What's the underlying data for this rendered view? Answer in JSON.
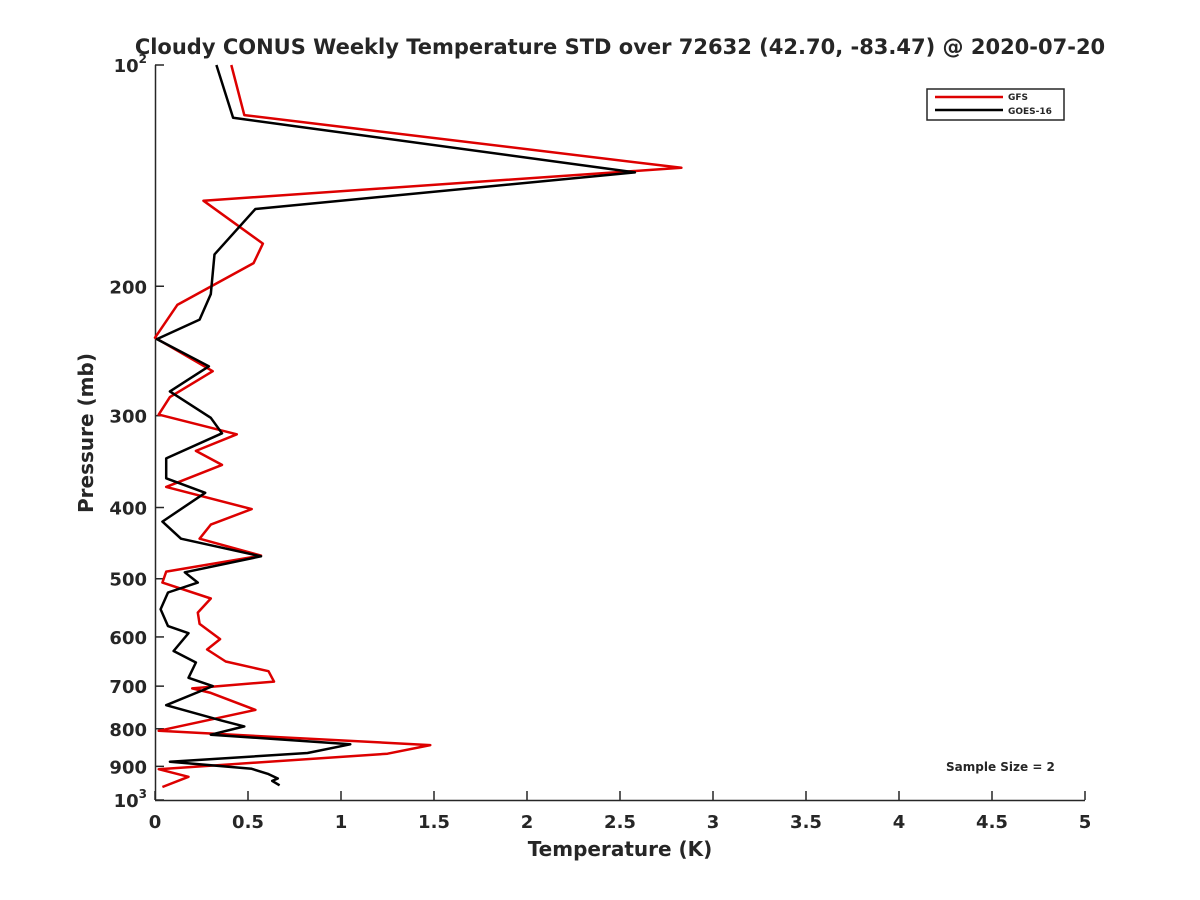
{
  "chart_data": {
    "type": "line",
    "title": "Cloudy CONUS Weekly Temperature STD over 72632 (42.70, -83.47) @ 2020-07-20",
    "xlabel": "Temperature (K)",
    "ylabel": "Pressure (mb)",
    "xlim": [
      0,
      5
    ],
    "ylim": [
      100,
      1000
    ],
    "y_scale": "log",
    "y_reversed": true,
    "grid": false,
    "legend_position": "top-right",
    "annotation": "Sample Size = 2",
    "x_ticks": [
      "0",
      "0.5",
      "1",
      "1.5",
      "2",
      "2.5",
      "3",
      "3.5",
      "4",
      "4.5",
      "5"
    ],
    "y_ticks": [
      {
        "value": 100,
        "base": "10",
        "exp": "2"
      },
      {
        "value": 200,
        "label": "200"
      },
      {
        "value": 300,
        "label": "300"
      },
      {
        "value": 400,
        "label": "400"
      },
      {
        "value": 500,
        "label": "500"
      },
      {
        "value": 600,
        "label": "600"
      },
      {
        "value": 700,
        "label": "700"
      },
      {
        "value": 800,
        "label": "800"
      },
      {
        "value": 900,
        "label": "900"
      },
      {
        "value": 1000,
        "base": "10",
        "exp": "3"
      }
    ],
    "series": [
      {
        "name": "GFS",
        "color": "#dd0000",
        "points": [
          [
            0.41,
            100
          ],
          [
            0.48,
            117
          ],
          [
            2.83,
            138
          ],
          [
            0.26,
            153
          ],
          [
            0.58,
            175
          ],
          [
            0.53,
            186
          ],
          [
            0.12,
            212
          ],
          [
            0.0,
            235
          ],
          [
            0.31,
            261
          ],
          [
            0.08,
            283
          ],
          [
            0.02,
            299
          ],
          [
            0.44,
            318
          ],
          [
            0.22,
            335
          ],
          [
            0.36,
            350
          ],
          [
            0.06,
            375
          ],
          [
            0.52,
            402
          ],
          [
            0.3,
            422
          ],
          [
            0.24,
            441
          ],
          [
            0.57,
            465
          ],
          [
            0.06,
            489
          ],
          [
            0.04,
            506
          ],
          [
            0.3,
            532
          ],
          [
            0.23,
            556
          ],
          [
            0.24,
            576
          ],
          [
            0.35,
            604
          ],
          [
            0.28,
            624
          ],
          [
            0.38,
            648
          ],
          [
            0.61,
            668
          ],
          [
            0.64,
            690
          ],
          [
            0.2,
            705
          ],
          [
            0.3,
            715
          ],
          [
            0.54,
            754
          ],
          [
            0.02,
            805
          ],
          [
            1.48,
            842
          ],
          [
            1.25,
            865
          ],
          [
            0.02,
            908
          ],
          [
            0.18,
            930
          ],
          [
            0.04,
            960
          ]
        ]
      },
      {
        "name": "GOES-16",
        "color": "#000000",
        "points": [
          [
            0.33,
            100
          ],
          [
            0.42,
            118
          ],
          [
            2.58,
            140
          ],
          [
            0.54,
            157
          ],
          [
            0.32,
            181
          ],
          [
            0.3,
            205
          ],
          [
            0.24,
            222
          ],
          [
            0.01,
            236
          ],
          [
            0.29,
            257
          ],
          [
            0.08,
            278
          ],
          [
            0.3,
            302
          ],
          [
            0.36,
            317
          ],
          [
            0.06,
            343
          ],
          [
            0.06,
            365
          ],
          [
            0.27,
            382
          ],
          [
            0.04,
            418
          ],
          [
            0.14,
            441
          ],
          [
            0.57,
            466
          ],
          [
            0.16,
            490
          ],
          [
            0.23,
            506
          ],
          [
            0.07,
            522
          ],
          [
            0.03,
            550
          ],
          [
            0.07,
            580
          ],
          [
            0.18,
            593
          ],
          [
            0.1,
            627
          ],
          [
            0.22,
            650
          ],
          [
            0.18,
            682
          ],
          [
            0.31,
            700
          ],
          [
            0.06,
            743
          ],
          [
            0.36,
            780
          ],
          [
            0.48,
            794
          ],
          [
            0.3,
            815
          ],
          [
            1.05,
            840
          ],
          [
            0.82,
            863
          ],
          [
            0.08,
            887
          ],
          [
            0.52,
            907
          ],
          [
            0.61,
            922
          ],
          [
            0.66,
            935
          ],
          [
            0.63,
            942
          ],
          [
            0.67,
            955
          ]
        ]
      }
    ]
  }
}
